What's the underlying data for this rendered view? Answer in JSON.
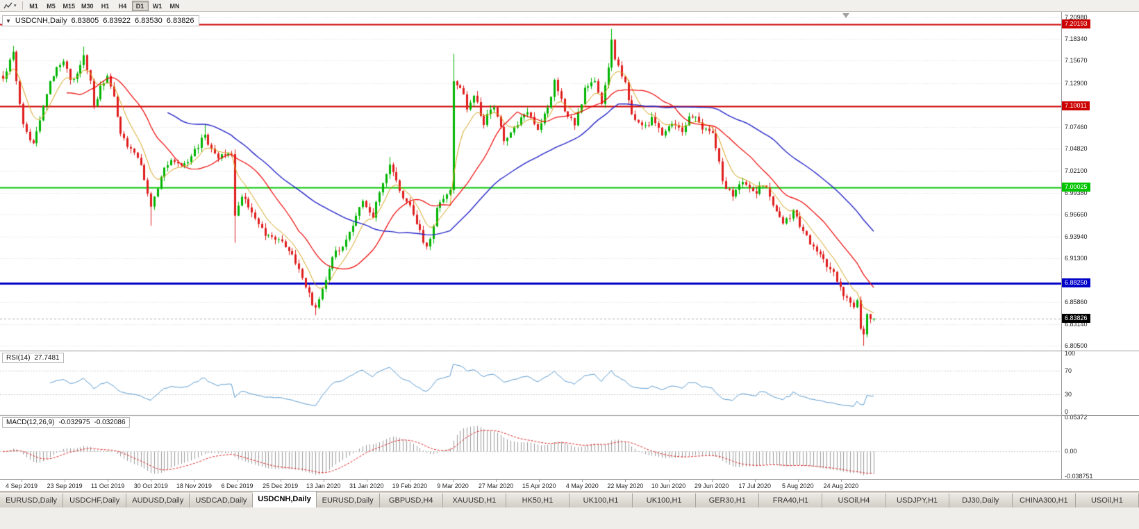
{
  "toolbar": {
    "timeframes": [
      {
        "label": "M1",
        "active": false
      },
      {
        "label": "M5",
        "active": false
      },
      {
        "label": "M15",
        "active": false
      },
      {
        "label": "M30",
        "active": false
      },
      {
        "label": "H1",
        "active": false
      },
      {
        "label": "H4",
        "active": false
      },
      {
        "label": "D1",
        "active": true
      },
      {
        "label": "W1",
        "active": false
      },
      {
        "label": "MN",
        "active": false
      }
    ]
  },
  "chart": {
    "header": {
      "symbol": "USDCNH,Daily",
      "open": "6.83805",
      "high": "6.83922",
      "low": "6.83530",
      "close": "6.83826"
    },
    "price_axis": {
      "grid_labels": [
        "7.20980",
        "7.18340",
        "7.15670",
        "7.12900",
        "7.07460",
        "7.04820",
        "7.02100",
        "6.99380",
        "6.96660",
        "6.93940",
        "6.91300",
        "6.85860",
        "6.83140",
        "6.80500"
      ]
    },
    "hlines": [
      {
        "label": "7.20193",
        "price": 7.20193,
        "color": "#cc0000",
        "width": 2
      },
      {
        "label": "7.10011",
        "price": 7.10011,
        "color": "#cc0000",
        "width": 2
      },
      {
        "label": "7.00025",
        "price": 7.00025,
        "color": "#00c400",
        "width": 2
      },
      {
        "label": "6.88250",
        "price": 6.8825,
        "color": "#0000c8",
        "width": 3
      }
    ],
    "current_price": {
      "label": "6.83826",
      "value": 6.83826,
      "badge_color": "#000000"
    }
  },
  "rsi": {
    "name": "RSI(14)",
    "value": "27.7481",
    "axis_labels": [
      "100",
      "70",
      "30",
      "0"
    ],
    "levels": [
      70,
      30
    ],
    "color": "#5b9bd0",
    "range": [
      0,
      100
    ]
  },
  "macd": {
    "name": "MACD(12,26,9)",
    "main_value": "-0.032975",
    "signal_value": "-0.032086",
    "axis_labels": [
      "0.05372",
      "0.00",
      "-0.038751"
    ],
    "range": [
      -0.0387,
      0.0537
    ],
    "hist_color": "#9a9a9a",
    "signal_color": "#e02020"
  },
  "date_axis": {
    "labels": [
      "4 Sep 2019",
      "23 Sep 2019",
      "11 Oct 2019",
      "30 Oct 2019",
      "18 Nov 2019",
      "6 Dec 2019",
      "25 Dec 2019",
      "13 Jan 2020",
      "31 Jan 2020",
      "19 Feb 2020",
      "9 Mar 2020",
      "27 Mar 2020",
      "15 Apr 2020",
      "4 May 2020",
      "22 May 2020",
      "10 Jun 2020",
      "29 Jun 2020",
      "17 Jul 2020",
      "5 Aug 2020",
      "24 Aug 2020"
    ]
  },
  "tabbar": {
    "tabs": [
      {
        "label": "EURUSD,Daily",
        "active": false
      },
      {
        "label": "USDCHF,Daily",
        "active": false
      },
      {
        "label": "AUDUSD,Daily",
        "active": false
      },
      {
        "label": "USDCAD,Daily",
        "active": false
      },
      {
        "label": "USDCNH,Daily",
        "active": true
      },
      {
        "label": "EURUSD,Daily",
        "active": false
      },
      {
        "label": "GBPUSD,H4",
        "active": false
      },
      {
        "label": "XAUUSD,H1",
        "active": false
      },
      {
        "label": "HK50,H1",
        "active": false
      },
      {
        "label": "UK100,H1",
        "active": false
      },
      {
        "label": "UK100,H1",
        "active": false
      },
      {
        "label": "GER30,H1",
        "active": false
      },
      {
        "label": "FRA40,H1",
        "active": false
      },
      {
        "label": "USOil,H4",
        "active": false
      },
      {
        "label": "USDJPY,H1",
        "active": false
      },
      {
        "label": "DJ30,Daily",
        "active": false
      },
      {
        "label": "CHINA300,H1",
        "active": false
      },
      {
        "label": "USOil,H1",
        "active": false
      }
    ]
  },
  "chart_data": {
    "type": "candlestick",
    "symbol": "USDCNH",
    "timeframe": "D1",
    "visible_date_range": [
      "4 Sep 2019",
      "31 Aug 2020"
    ],
    "price_range": [
      6.799,
      7.217
    ],
    "candle_count": 260,
    "last_ohlc": {
      "open": 6.83805,
      "high": 6.83922,
      "low": 6.8353,
      "close": 6.83826
    },
    "up_color": "#00b400",
    "down_color": "#e01c1c",
    "mas": [
      {
        "period": 8,
        "type": "ema",
        "color": "#d4a017",
        "width": 1
      },
      {
        "period": 20,
        "type": "sma",
        "color": "#f00000",
        "width": 1.2
      },
      {
        "period": 50,
        "type": "sma",
        "color": "#2525c8",
        "width": 1.4
      }
    ],
    "anchors": [
      [
        0,
        7.135
      ],
      [
        2,
        7.158
      ],
      [
        3,
        7.165
      ],
      [
        5,
        7.1
      ],
      [
        6,
        7.075
      ],
      [
        8,
        7.06
      ],
      [
        9,
        7.058
      ],
      [
        12,
        7.1
      ],
      [
        14,
        7.13
      ],
      [
        16,
        7.15
      ],
      [
        18,
        7.155
      ],
      [
        20,
        7.135
      ],
      [
        22,
        7.14
      ],
      [
        24,
        7.162
      ],
      [
        26,
        7.13
      ],
      [
        27,
        7.1
      ],
      [
        29,
        7.125
      ],
      [
        31,
        7.138
      ],
      [
        33,
        7.11
      ],
      [
        35,
        7.07
      ],
      [
        38,
        7.045
      ],
      [
        41,
        7.03
      ],
      [
        43,
        6.99
      ],
      [
        44,
        6.975
      ],
      [
        46,
        7.0
      ],
      [
        47,
        7.015
      ],
      [
        50,
        7.035
      ],
      [
        52,
        7.028
      ],
      [
        54,
        7.03
      ],
      [
        57,
        7.045
      ],
      [
        59,
        7.06
      ],
      [
        60,
        7.062
      ],
      [
        62,
        7.05
      ],
      [
        63,
        7.04
      ],
      [
        66,
        7.038
      ],
      [
        68,
        7.042
      ],
      [
        69,
        6.962
      ],
      [
        71,
        6.99
      ],
      [
        73,
        6.978
      ],
      [
        75,
        6.965
      ],
      [
        78,
        6.94
      ],
      [
        81,
        6.936
      ],
      [
        84,
        6.93
      ],
      [
        86,
        6.915
      ],
      [
        88,
        6.9
      ],
      [
        90,
        6.88
      ],
      [
        91,
        6.87
      ],
      [
        92,
        6.858
      ],
      [
        93,
        6.849
      ],
      [
        94,
        6.862
      ],
      [
        95,
        6.872
      ],
      [
        97,
        6.9
      ],
      [
        98,
        6.915
      ],
      [
        100,
        6.925
      ],
      [
        101,
        6.93
      ],
      [
        103,
        6.945
      ],
      [
        104,
        6.955
      ],
      [
        106,
        6.975
      ],
      [
        107,
        6.985
      ],
      [
        109,
        6.972
      ],
      [
        110,
        6.965
      ],
      [
        112,
        6.995
      ],
      [
        113,
        7.008
      ],
      [
        115,
        7.028
      ],
      [
        117,
        7.01
      ],
      [
        118,
        6.995
      ],
      [
        120,
        6.98
      ],
      [
        121,
        6.975
      ],
      [
        123,
        6.952
      ],
      [
        124,
        6.945
      ],
      [
        126,
        6.925
      ],
      [
        128,
        6.955
      ],
      [
        129,
        6.975
      ],
      [
        131,
        6.985
      ],
      [
        133,
        7.0
      ],
      [
        134,
        7.13
      ],
      [
        136,
        7.125
      ],
      [
        138,
        7.1
      ],
      [
        140,
        7.115
      ],
      [
        142,
        7.09
      ],
      [
        143,
        7.08
      ],
      [
        145,
        7.095
      ],
      [
        146,
        7.1
      ],
      [
        148,
        7.075
      ],
      [
        149,
        7.06
      ],
      [
        151,
        7.07
      ],
      [
        153,
        7.08
      ],
      [
        155,
        7.088
      ],
      [
        156,
        7.09
      ],
      [
        158,
        7.078
      ],
      [
        159,
        7.07
      ],
      [
        161,
        7.088
      ],
      [
        162,
        7.1
      ],
      [
        164,
        7.13
      ],
      [
        166,
        7.11
      ],
      [
        167,
        7.095
      ],
      [
        169,
        7.085
      ],
      [
        170,
        7.08
      ],
      [
        172,
        7.105
      ],
      [
        173,
        7.12
      ],
      [
        175,
        7.13
      ],
      [
        176,
        7.135
      ],
      [
        178,
        7.1
      ],
      [
        180,
        7.15
      ],
      [
        181,
        7.183
      ],
      [
        182,
        7.16
      ],
      [
        183,
        7.15
      ],
      [
        185,
        7.128
      ],
      [
        187,
        7.09
      ],
      [
        189,
        7.08
      ],
      [
        190,
        7.075
      ],
      [
        192,
        7.08
      ],
      [
        193,
        7.085
      ],
      [
        195,
        7.072
      ],
      [
        196,
        7.065
      ],
      [
        198,
        7.075
      ],
      [
        199,
        7.08
      ],
      [
        201,
        7.072
      ],
      [
        202,
        7.07
      ],
      [
        204,
        7.085
      ],
      [
        205,
        7.09
      ],
      [
        207,
        7.08
      ],
      [
        208,
        7.075
      ],
      [
        210,
        7.068
      ],
      [
        211,
        7.065
      ],
      [
        213,
        7.03
      ],
      [
        214,
        7.005
      ],
      [
        216,
        6.995
      ],
      [
        217,
        6.99
      ],
      [
        219,
        7.005
      ],
      [
        220,
        7.01
      ],
      [
        222,
        7.0
      ],
      [
        224,
        6.995
      ],
      [
        226,
        7.005
      ],
      [
        228,
        6.99
      ],
      [
        229,
        6.975
      ],
      [
        231,
        6.962
      ],
      [
        232,
        6.955
      ],
      [
        234,
        6.965
      ],
      [
        235,
        6.97
      ],
      [
        237,
        6.955
      ],
      [
        238,
        6.945
      ],
      [
        240,
        6.932
      ],
      [
        241,
        6.925
      ],
      [
        243,
        6.915
      ],
      [
        244,
        6.91
      ],
      [
        246,
        6.9
      ],
      [
        247,
        6.895
      ],
      [
        249,
        6.878
      ],
      [
        250,
        6.865
      ],
      [
        252,
        6.858
      ],
      [
        253,
        6.855
      ],
      [
        254,
        6.86
      ],
      [
        255,
        6.825
      ],
      [
        256,
        6.818
      ],
      [
        257,
        6.842
      ],
      [
        258,
        6.836
      ],
      [
        259,
        6.83826
      ]
    ],
    "wicks": [
      {
        "i": 3,
        "high": 7.175
      },
      {
        "i": 24,
        "high": 7.174
      },
      {
        "i": 44,
        "low": 6.953
      },
      {
        "i": 60,
        "high": 7.078
      },
      {
        "i": 69,
        "low": 6.932
      },
      {
        "i": 93,
        "low": 6.8425
      },
      {
        "i": 115,
        "high": 7.038
      },
      {
        "i": 134,
        "high": 7.165
      },
      {
        "i": 181,
        "high": 7.196
      },
      {
        "i": 256,
        "low": 6.805
      }
    ],
    "indicators": [
      {
        "name": "RSI",
        "period": 14,
        "last_value": 27.7481
      },
      {
        "name": "MACD",
        "fast": 12,
        "slow": 26,
        "signal": 9,
        "last_main": -0.032975,
        "last_signal": -0.032086
      }
    ]
  }
}
